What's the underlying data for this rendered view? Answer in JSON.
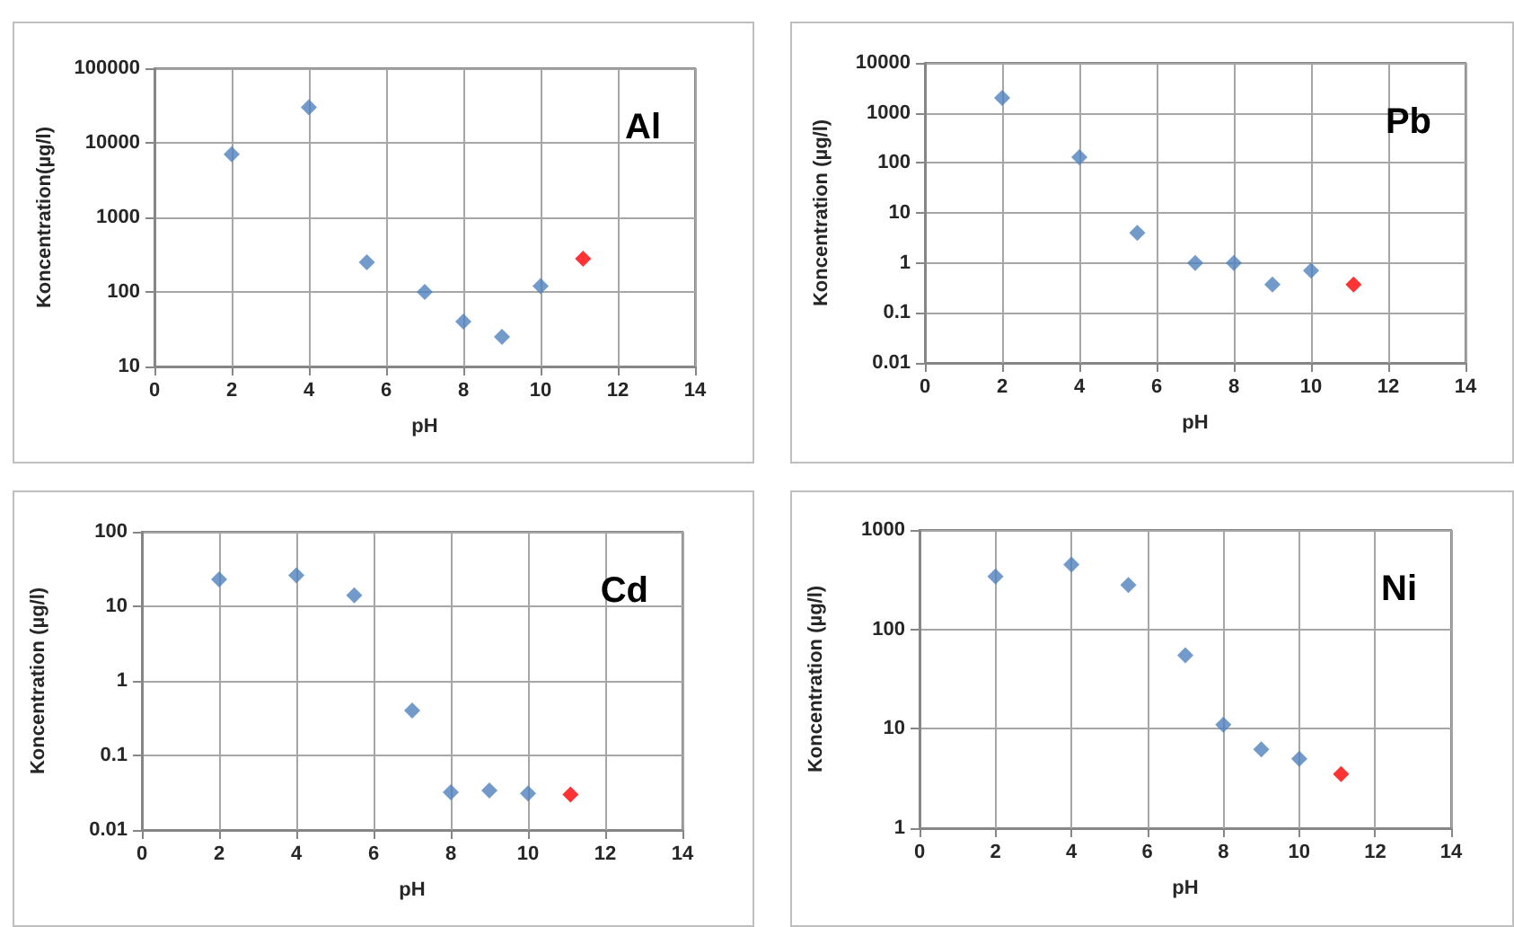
{
  "chart_data": [
    {
      "type": "scatter",
      "title": "Al",
      "xlabel": "pH",
      "ylabel": "Koncentration(µg/l)",
      "log": "y",
      "grid": true,
      "marker": "diamond",
      "xlim": [
        0,
        14
      ],
      "xticks": [
        0,
        2,
        4,
        6,
        8,
        10,
        12,
        14
      ],
      "ylim": [
        10,
        100000
      ],
      "yticks": [
        10,
        100,
        1000,
        10000,
        100000
      ],
      "series": [
        {
          "color": "#4f81bd",
          "x": [
            2,
            4,
            5.5,
            7,
            8,
            9,
            10
          ],
          "values": [
            7000,
            30000,
            250,
            100,
            40,
            25,
            120
          ]
        },
        {
          "color": "#ff0000",
          "x": [
            11.1
          ],
          "values": [
            280
          ]
        }
      ]
    },
    {
      "type": "scatter",
      "title": "Pb",
      "xlabel": "pH",
      "ylabel": "Koncentration (µg/l)",
      "log": "y",
      "grid": true,
      "marker": "diamond",
      "xlim": [
        0,
        14
      ],
      "xticks": [
        0,
        2,
        4,
        6,
        8,
        10,
        12,
        14
      ],
      "ylim": [
        0.01,
        10000
      ],
      "yticks": [
        0.01,
        0.1,
        1,
        10,
        100,
        1000,
        10000
      ],
      "series": [
        {
          "color": "#4f81bd",
          "x": [
            2,
            4,
            5.5,
            7,
            8,
            9,
            10
          ],
          "values": [
            2000,
            130,
            4,
            1,
            1,
            0.37,
            0.7
          ]
        },
        {
          "color": "#ff0000",
          "x": [
            11.1
          ],
          "values": [
            0.37
          ]
        }
      ]
    },
    {
      "type": "scatter",
      "title": "Cd",
      "xlabel": "pH",
      "ylabel": "Koncentration (µg/l)",
      "log": "y",
      "grid": true,
      "marker": "diamond",
      "xlim": [
        0,
        14
      ],
      "xticks": [
        0,
        2,
        4,
        6,
        8,
        10,
        12,
        14
      ],
      "ylim": [
        0.01,
        100
      ],
      "yticks": [
        0.01,
        0.1,
        1,
        10,
        100
      ],
      "series": [
        {
          "color": "#4f81bd",
          "x": [
            2,
            4,
            5.5,
            7,
            8,
            9,
            10
          ],
          "values": [
            23,
            26,
            14,
            0.4,
            0.032,
            0.034,
            0.031
          ]
        },
        {
          "color": "#ff0000",
          "x": [
            11.1
          ],
          "values": [
            0.03
          ]
        }
      ]
    },
    {
      "type": "scatter",
      "title": "Ni",
      "xlabel": "pH",
      "ylabel": "Koncentration (µg/l)",
      "log": "y",
      "grid": true,
      "marker": "diamond",
      "xlim": [
        0,
        14
      ],
      "xticks": [
        0,
        2,
        4,
        6,
        8,
        10,
        12,
        14
      ],
      "ylim": [
        1,
        1000
      ],
      "yticks": [
        1,
        10,
        100,
        1000
      ],
      "series": [
        {
          "color": "#4f81bd",
          "x": [
            2,
            4,
            5.5,
            7,
            8,
            9,
            10
          ],
          "values": [
            340,
            450,
            280,
            55,
            11,
            6.2,
            5
          ]
        },
        {
          "color": "#ff0000",
          "x": [
            11.1
          ],
          "values": [
            3.5
          ]
        }
      ]
    }
  ]
}
